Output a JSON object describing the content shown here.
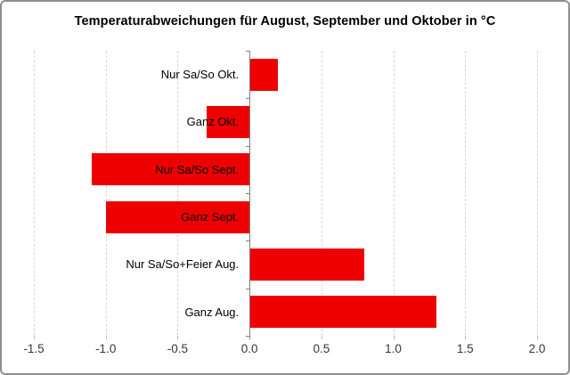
{
  "window": {
    "background": "#ffffff",
    "border_color": "#8f8f8f"
  },
  "chart_data": {
    "type": "bar",
    "orientation": "horizontal",
    "title": "Temperaturabweichungen für August, September und Oktober in °C",
    "categories": [
      "Nur Sa/So Okt.",
      "Ganz Okt.",
      "Nur Sa/So Sept.",
      "Ganz Sept.",
      "Nur Sa/So+Feier Aug.",
      "Ganz Aug."
    ],
    "values": [
      0.2,
      -0.3,
      -1.1,
      -1.0,
      0.8,
      1.3
    ],
    "xlabel": "",
    "ylabel": "",
    "xlim": [
      -1.5,
      2.0
    ],
    "x_ticks": [
      -1.5,
      -1.0,
      -0.5,
      0.0,
      0.5,
      1.0,
      1.5,
      2.0
    ],
    "x_tick_labels": [
      "-1.5",
      "-1.0",
      "-0.5",
      "0.0",
      "0.5",
      "1.0",
      "1.5",
      "2.0"
    ],
    "bar_color": "#ee0000",
    "gridline_color": "#d6d6d6",
    "gridline_style": "dashed",
    "axis_color": "#7f7f7f",
    "grid": true,
    "legend": "none",
    "unit": "°C"
  }
}
